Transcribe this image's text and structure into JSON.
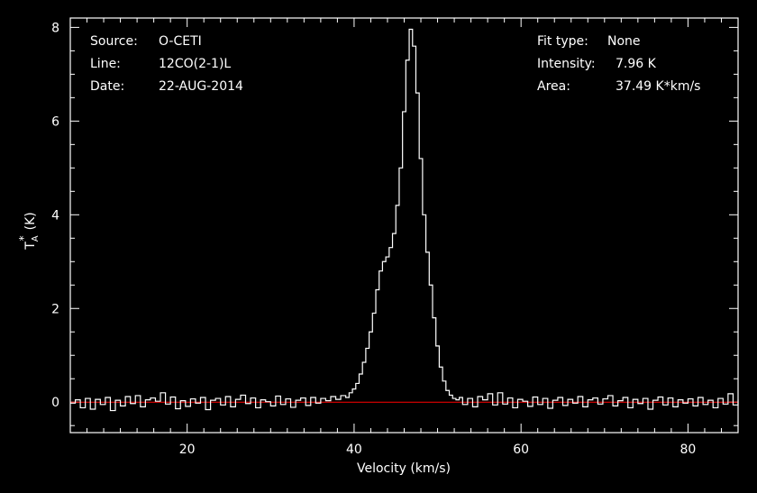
{
  "chart_data": {
    "type": "line",
    "xlabel": "Velocity (km/s)",
    "ylabel": "T",
    "ylabel_sub": "A",
    "ylabel_sup": "*",
    "ylabel_unit": "(K)",
    "xlim": [
      6,
      86
    ],
    "ylim": [
      -0.65,
      8.2
    ],
    "x_ticks": [
      20,
      40,
      60,
      80
    ],
    "y_ticks": [
      0,
      2,
      4,
      6,
      8
    ],
    "grid": false,
    "colors": {
      "background": "#000000",
      "spectrum": "#ffffff",
      "baseline": "#ff0000",
      "text": "#ffffff"
    },
    "info_left": [
      {
        "label": "Source:",
        "value": "O-CETI"
      },
      {
        "label": "Line:",
        "value": "12CO(2-1)L"
      },
      {
        "label": "Date:",
        "value": "22-AUG-2014"
      }
    ],
    "info_right": [
      {
        "label": "Fit type:",
        "value": "None"
      },
      {
        "label": "Intensity:",
        "value": "7.96 K"
      },
      {
        "label": "Area:",
        "value": "37.49 K*km/s"
      }
    ],
    "baseline_value": 0,
    "series": [
      {
        "values": [
          [
            6.0,
            -0.02
          ],
          [
            6.6,
            0.05
          ],
          [
            7.2,
            -0.12
          ],
          [
            7.8,
            0.08
          ],
          [
            8.4,
            -0.15
          ],
          [
            9.0,
            0.06
          ],
          [
            9.6,
            -0.05
          ],
          [
            10.2,
            0.1
          ],
          [
            10.8,
            -0.18
          ],
          [
            11.4,
            0.04
          ],
          [
            12.0,
            -0.08
          ],
          [
            12.6,
            0.12
          ],
          [
            13.2,
            -0.03
          ],
          [
            13.8,
            0.14
          ],
          [
            14.4,
            -0.1
          ],
          [
            15.0,
            0.05
          ],
          [
            15.6,
            0.09
          ],
          [
            16.2,
            0.02
          ],
          [
            16.8,
            0.2
          ],
          [
            17.4,
            -0.04
          ],
          [
            18.0,
            0.11
          ],
          [
            18.6,
            -0.14
          ],
          [
            19.2,
            0.03
          ],
          [
            19.8,
            -0.09
          ],
          [
            20.4,
            0.07
          ],
          [
            21.0,
            -0.02
          ],
          [
            21.6,
            0.1
          ],
          [
            22.2,
            -0.16
          ],
          [
            22.8,
            0.04
          ],
          [
            23.4,
            0.08
          ],
          [
            24.0,
            -0.06
          ],
          [
            24.6,
            0.12
          ],
          [
            25.2,
            -0.1
          ],
          [
            25.8,
            0.06
          ],
          [
            26.4,
            0.15
          ],
          [
            27.0,
            -0.03
          ],
          [
            27.6,
            0.09
          ],
          [
            28.2,
            -0.12
          ],
          [
            28.8,
            0.05
          ],
          [
            29.4,
            0.01
          ],
          [
            30.0,
            -0.08
          ],
          [
            30.6,
            0.13
          ],
          [
            31.2,
            -0.05
          ],
          [
            31.8,
            0.07
          ],
          [
            32.4,
            -0.11
          ],
          [
            33.0,
            0.04
          ],
          [
            33.6,
            0.09
          ],
          [
            34.2,
            -0.07
          ],
          [
            34.8,
            0.1
          ],
          [
            35.4,
            -0.02
          ],
          [
            36.0,
            0.08
          ],
          [
            36.6,
            0.03
          ],
          [
            37.2,
            0.12
          ],
          [
            37.8,
            0.06
          ],
          [
            38.4,
            0.14
          ],
          [
            39.0,
            0.1
          ],
          [
            39.4,
            0.2
          ],
          [
            39.8,
            0.28
          ],
          [
            40.2,
            0.4
          ],
          [
            40.6,
            0.6
          ],
          [
            41.0,
            0.85
          ],
          [
            41.4,
            1.15
          ],
          [
            41.8,
            1.5
          ],
          [
            42.2,
            1.9
          ],
          [
            42.6,
            2.4
          ],
          [
            43.0,
            2.8
          ],
          [
            43.4,
            3.0
          ],
          [
            43.8,
            3.1
          ],
          [
            44.2,
            3.3
          ],
          [
            44.6,
            3.6
          ],
          [
            45.0,
            4.2
          ],
          [
            45.4,
            5.0
          ],
          [
            45.8,
            6.2
          ],
          [
            46.2,
            7.3
          ],
          [
            46.6,
            7.96
          ],
          [
            47.0,
            7.6
          ],
          [
            47.4,
            6.6
          ],
          [
            47.8,
            5.2
          ],
          [
            48.2,
            4.0
          ],
          [
            48.6,
            3.2
          ],
          [
            49.0,
            2.5
          ],
          [
            49.4,
            1.8
          ],
          [
            49.8,
            1.2
          ],
          [
            50.2,
            0.75
          ],
          [
            50.6,
            0.45
          ],
          [
            51.0,
            0.25
          ],
          [
            51.4,
            0.15
          ],
          [
            51.8,
            0.08
          ],
          [
            52.2,
            0.05
          ],
          [
            52.6,
            0.1
          ],
          [
            53.0,
            -0.05
          ],
          [
            53.6,
            0.08
          ],
          [
            54.2,
            -0.1
          ],
          [
            54.8,
            0.12
          ],
          [
            55.4,
            0.05
          ],
          [
            56.0,
            0.18
          ],
          [
            56.6,
            -0.06
          ],
          [
            57.2,
            0.2
          ],
          [
            57.8,
            -0.04
          ],
          [
            58.4,
            0.09
          ],
          [
            59.0,
            -0.12
          ],
          [
            59.6,
            0.06
          ],
          [
            60.2,
            0.02
          ],
          [
            60.8,
            -0.09
          ],
          [
            61.4,
            0.11
          ],
          [
            62.0,
            -0.05
          ],
          [
            62.6,
            0.08
          ],
          [
            63.2,
            -0.13
          ],
          [
            63.8,
            0.04
          ],
          [
            64.4,
            0.1
          ],
          [
            65.0,
            -0.07
          ],
          [
            65.6,
            0.06
          ],
          [
            66.2,
            -0.02
          ],
          [
            66.8,
            0.12
          ],
          [
            67.4,
            -0.1
          ],
          [
            68.0,
            0.05
          ],
          [
            68.6,
            0.09
          ],
          [
            69.2,
            -0.04
          ],
          [
            69.8,
            0.07
          ],
          [
            70.4,
            0.14
          ],
          [
            71.0,
            -0.08
          ],
          [
            71.6,
            0.03
          ],
          [
            72.2,
            0.1
          ],
          [
            72.8,
            -0.12
          ],
          [
            73.4,
            0.06
          ],
          [
            74.0,
            -0.03
          ],
          [
            74.6,
            0.08
          ],
          [
            75.2,
            -0.15
          ],
          [
            75.8,
            0.04
          ],
          [
            76.4,
            0.11
          ],
          [
            77.0,
            -0.06
          ],
          [
            77.6,
            0.09
          ],
          [
            78.2,
            -0.1
          ],
          [
            78.8,
            0.05
          ],
          [
            79.4,
            -0.02
          ],
          [
            80.0,
            0.07
          ],
          [
            80.6,
            -0.08
          ],
          [
            81.2,
            0.1
          ],
          [
            81.8,
            -0.05
          ],
          [
            82.4,
            0.04
          ],
          [
            83.0,
            -0.12
          ],
          [
            83.6,
            0.08
          ],
          [
            84.2,
            -0.04
          ],
          [
            84.8,
            0.18
          ],
          [
            85.4,
            -0.06
          ],
          [
            86.0,
            0.05
          ]
        ]
      }
    ]
  }
}
